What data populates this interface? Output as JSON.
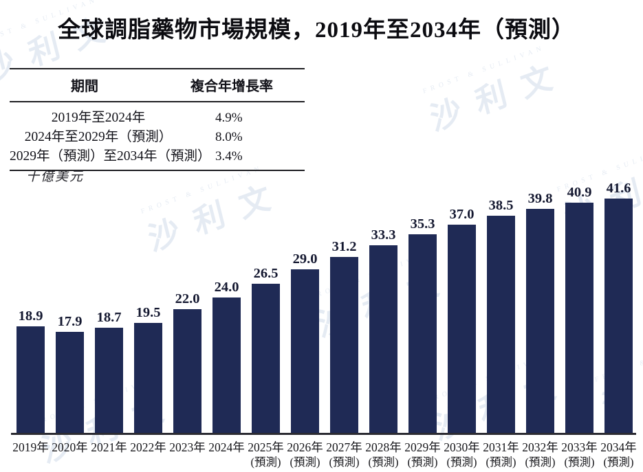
{
  "title": "全球調脂藥物市場規模，2019年至2034年（預測）",
  "cagr_table": {
    "headers": [
      "期間",
      "複合年增長率"
    ],
    "rows": [
      {
        "period": "2019年至2024年",
        "cagr": "4.9%"
      },
      {
        "period": "2024年至2029年（預測）",
        "cagr": "8.0%"
      },
      {
        "period": "2029年（預測）至2034年（預測）",
        "cagr": "3.4%"
      }
    ]
  },
  "unit_label": "十億美元",
  "watermark": {
    "latin": "FROST & SULLIVAN",
    "cjk": "沙利文"
  },
  "chart_data": {
    "type": "bar",
    "title": "全球調脂藥物市場規模，2019年至2034年（預測）",
    "ylabel": "十億美元",
    "categories": [
      "2019年",
      "2020年",
      "2021年",
      "2022年",
      "2023年",
      "2024年",
      "2025年",
      "2026年",
      "2027年",
      "2028年",
      "2029年",
      "2030年",
      "2031年",
      "2032年",
      "2033年",
      "2034年"
    ],
    "forecast_note": "(預測)",
    "forecast_start_index": 6,
    "values": [
      18.9,
      17.9,
      18.7,
      19.5,
      22.0,
      24.0,
      26.5,
      29.0,
      31.2,
      33.3,
      35.3,
      37.0,
      38.5,
      39.8,
      40.9,
      41.6
    ],
    "bar_color": "#1f2a55",
    "value_label_color": "#141830",
    "ylim": [
      0,
      45
    ],
    "grid": false,
    "legend": false
  }
}
